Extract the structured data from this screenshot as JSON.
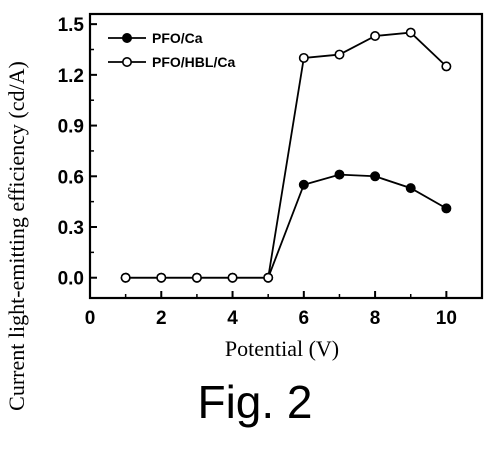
{
  "chart_data": {
    "type": "line",
    "xlabel": "Potential (V)",
    "ylabel": "Current light-emitting efficiency (cd/A)",
    "xlim": [
      0,
      11
    ],
    "ylim": [
      -0.12,
      1.56
    ],
    "xticks": [
      0,
      2,
      4,
      6,
      8,
      10
    ],
    "yticks": [
      0.0,
      0.3,
      0.6,
      0.9,
      1.2,
      1.5
    ],
    "xtick_labels": [
      "0",
      "2",
      "4",
      "6",
      "8",
      "10"
    ],
    "ytick_labels": [
      "0.0",
      "0.3",
      "0.6",
      "0.9",
      "1.2",
      "1.5"
    ],
    "legend_position": "top-left",
    "grid": false,
    "series": [
      {
        "name": "PFO/Ca",
        "marker": "filled-circle",
        "x": [
          1,
          2,
          3,
          4,
          5,
          6,
          7,
          8,
          9,
          10
        ],
        "y": [
          0.0,
          0.0,
          0.0,
          0.0,
          0.0,
          0.55,
          0.61,
          0.6,
          0.53,
          0.41
        ]
      },
      {
        "name": "PFO/HBL/Ca",
        "marker": "open-circle",
        "x": [
          1,
          2,
          3,
          4,
          5,
          6,
          7,
          8,
          9,
          10
        ],
        "y": [
          0.0,
          0.0,
          0.0,
          0.0,
          0.0,
          1.3,
          1.32,
          1.43,
          1.45,
          1.25
        ]
      }
    ]
  },
  "caption": "Fig. 2"
}
